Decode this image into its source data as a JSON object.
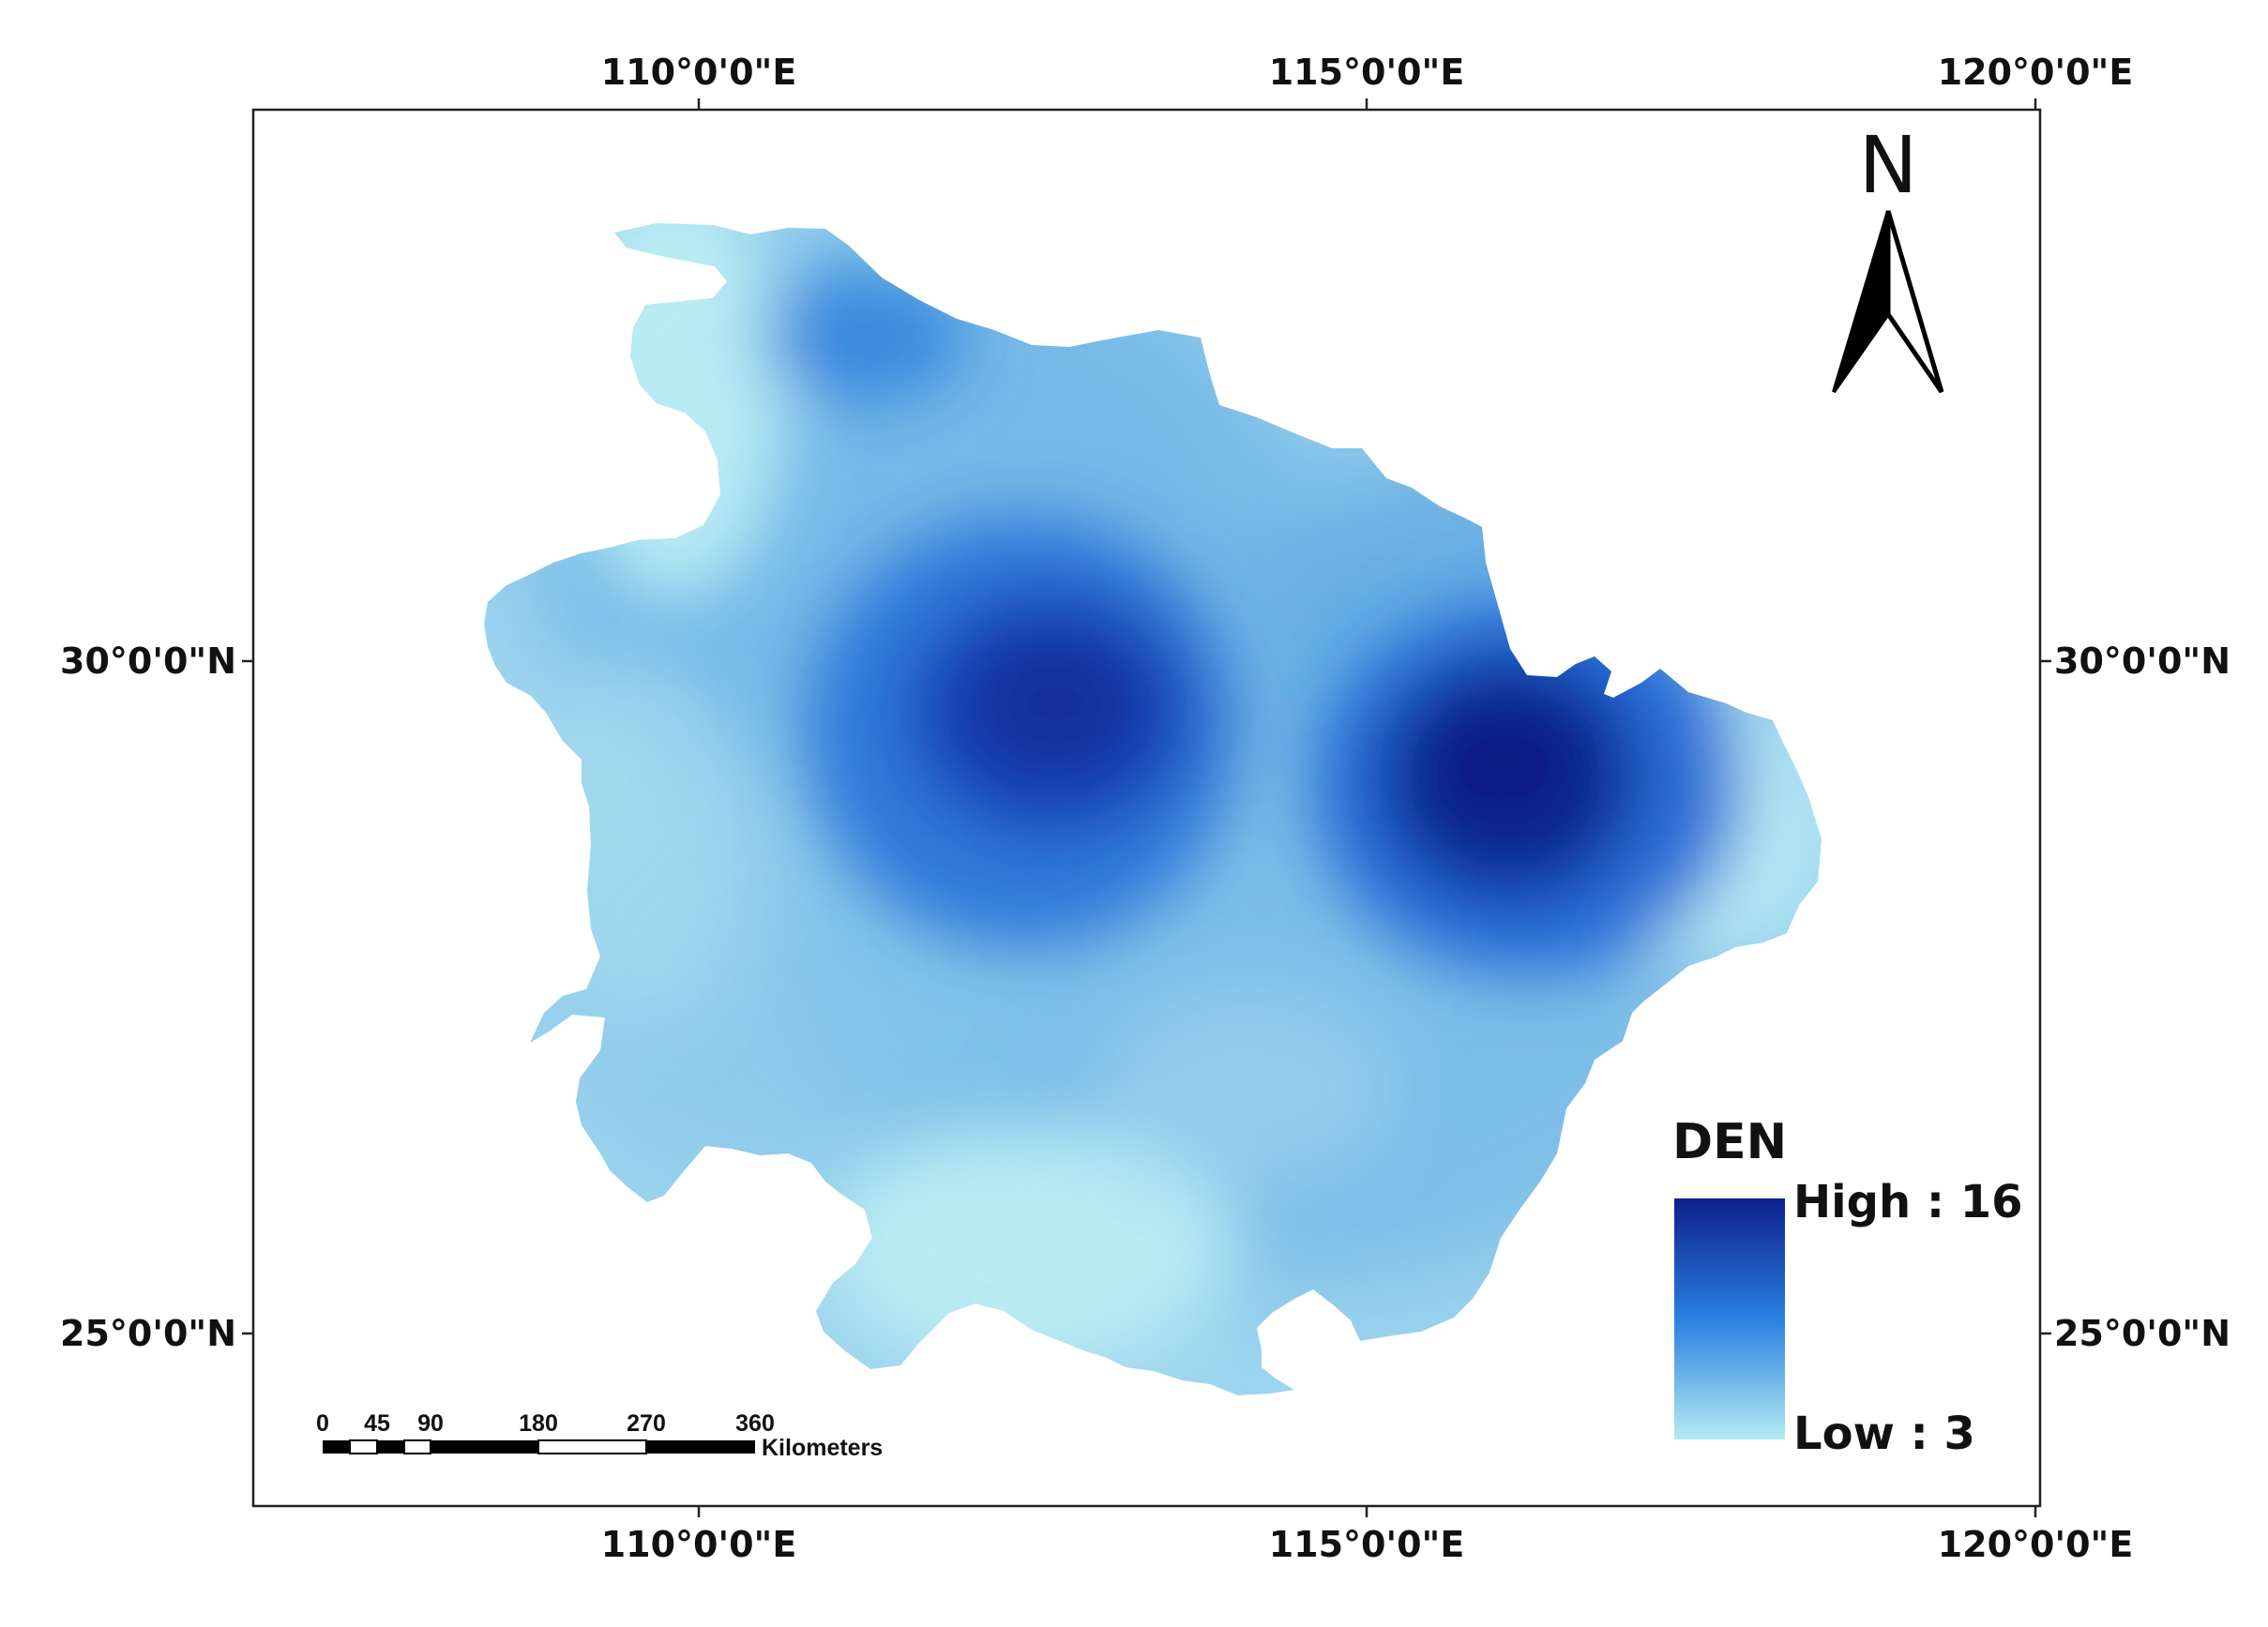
{
  "map": {
    "top_longitude_labels": [
      "110°0'0\"E",
      "115°0'0\"E",
      "120°0'0\"E"
    ],
    "bottom_longitude_labels": [
      "110°0'0\"E",
      "115°0'0\"E",
      "120°0'0\"E"
    ],
    "left_latitude_labels": [
      "30°0'0\"N",
      "25°0'0\"N"
    ],
    "right_latitude_labels": [
      "30°0'0\"N",
      "25°0'0\"N"
    ]
  },
  "north_arrow": {
    "label": "N",
    "icon": "north-arrow-icon"
  },
  "legend": {
    "title": "DEN",
    "high_label": "High : 16",
    "low_label": "Low : 3",
    "color_high": "#0d1f8c",
    "color_mid": "#2a7fe0",
    "color_low": "#b5ecf2"
  },
  "scale_bar": {
    "ticks": [
      "0",
      "45",
      "90",
      "180",
      "270",
      "360"
    ],
    "unit": "Kilometers"
  }
}
